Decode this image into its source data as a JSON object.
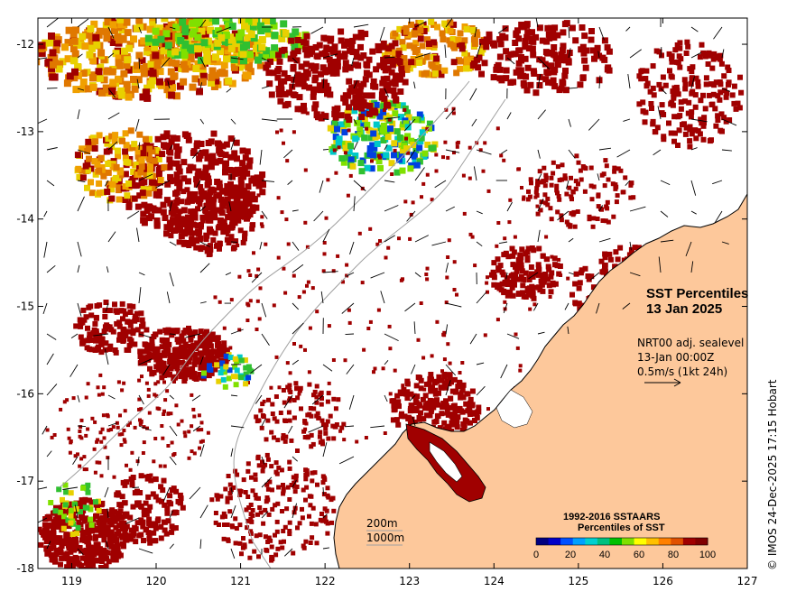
{
  "map": {
    "title_line1": "SST Percentiles",
    "title_line2": "13 Jan 2025",
    "x_ticks": [
      "119",
      "120",
      "121",
      "122",
      "123",
      "124",
      "125",
      "126",
      "127"
    ],
    "y_ticks": [
      "-12",
      "-13",
      "-14",
      "-15",
      "-16",
      "-17",
      "-18"
    ],
    "lon_range": [
      118.6,
      127.0
    ],
    "lat_range": [
      -18.0,
      -11.7
    ]
  },
  "vector_info": {
    "line1": "NRT00 adj. sealevel",
    "line2": "13-Jan 00:00Z",
    "line3": "0.5m/s (1kt 24h)"
  },
  "depth_legend": {
    "label1": "200m",
    "label2": "1000m"
  },
  "colorbar": {
    "title1": "1992-2016 SSTAARS",
    "title2": "Percentiles of SST",
    "labels": [
      "0",
      "20",
      "40",
      "60",
      "80",
      "100"
    ],
    "colors": [
      "#000080",
      "#0000c8",
      "#0050ff",
      "#00a0ff",
      "#00d0d0",
      "#00c080",
      "#00c000",
      "#80e000",
      "#ffff00",
      "#ffc000",
      "#ff8000",
      "#e05000",
      "#a00000",
      "#800000"
    ]
  },
  "credit": "© IMOS 24-Dec-2025 17:15 Hobart",
  "colors": {
    "land": "#fdc89b",
    "hot": "#a00000",
    "orange": "#e07800",
    "amber": "#f0a000",
    "yellow": "#e8d000",
    "green": "#30c030",
    "cyan": "#00c8c8",
    "blue": "#0040e0",
    "lime": "#80e000"
  }
}
